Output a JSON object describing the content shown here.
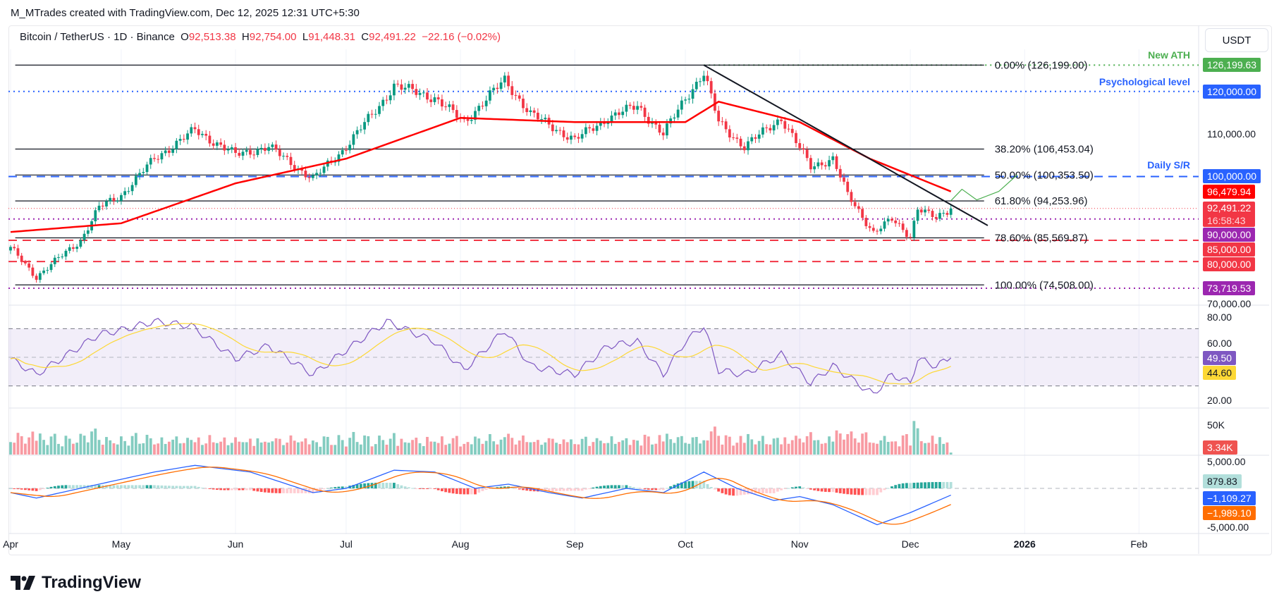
{
  "credit": "M_MTrades created with TradingView.com, Dec 12, 2025 12:31 UTC+5:30",
  "legend": {
    "symbol": "Bitcoin / TetherUS · 1D · Binance",
    "open_label": "O",
    "open": "92,513.38",
    "high_label": "H",
    "high": "92,754.00",
    "low_label": "L",
    "low": "91,448.31",
    "close_label": "C",
    "close": "92,491.22",
    "change": "−22.16 (−0.02%)"
  },
  "currency": "USDT",
  "brand": "TradingView",
  "colors": {
    "up": "#089981",
    "down": "#f23645",
    "ma": "#ff0000",
    "rsi": "#7e57c2",
    "rsi_ma": "#fdd835",
    "macd": "#2962ff",
    "signal": "#ff6d00"
  },
  "chart_data": {
    "type": "candlestick",
    "symbol": "BTCUSDT",
    "interval": "1D",
    "ylim": [
      70000,
      128000
    ],
    "x_ticks": [
      {
        "date": "2025-04-01",
        "label": "Apr"
      },
      {
        "date": "2025-05-01",
        "label": "May"
      },
      {
        "date": "2025-06-01",
        "label": "Jun"
      },
      {
        "date": "2025-07-01",
        "label": "Jul"
      },
      {
        "date": "2025-08-01",
        "label": "Aug"
      },
      {
        "date": "2025-09-01",
        "label": "Sep"
      },
      {
        "date": "2025-10-01",
        "label": "Oct"
      },
      {
        "date": "2025-11-01",
        "label": "Nov"
      },
      {
        "date": "2025-12-01",
        "label": "Dec"
      },
      {
        "date": "2026-01-01",
        "label": "2026"
      },
      {
        "date": "2026-02-01",
        "label": "Feb"
      }
    ],
    "y_ticks": [
      {
        "value": 110000,
        "label": "110,000.00"
      },
      {
        "value": 70000,
        "label": "70,000.00"
      }
    ],
    "close_path": [
      [
        "2025-04-01",
        83100
      ],
      [
        "2025-04-08",
        76400
      ],
      [
        "2025-04-20",
        85000
      ],
      [
        "2025-04-25",
        92700
      ],
      [
        "2025-05-01",
        95600
      ],
      [
        "2025-05-10",
        104200
      ],
      [
        "2025-05-21",
        110900
      ],
      [
        "2025-06-01",
        105100
      ],
      [
        "2025-06-10",
        107000
      ],
      [
        "2025-06-22",
        99400
      ],
      [
        "2025-06-30",
        106100
      ],
      [
        "2025-07-10",
        116600
      ],
      [
        "2025-07-14",
        121400
      ],
      [
        "2025-07-25",
        118500
      ],
      [
        "2025-08-02",
        112800
      ],
      [
        "2025-08-13",
        122700
      ],
      [
        "2025-08-20",
        114700
      ],
      [
        "2025-09-01",
        108600
      ],
      [
        "2025-09-10",
        113800
      ],
      [
        "2025-09-18",
        116600
      ],
      [
        "2025-09-25",
        109900
      ],
      [
        "2025-10-01",
        118500
      ],
      [
        "2025-10-06",
        124300
      ],
      [
        "2025-10-10",
        112800
      ],
      [
        "2025-10-17",
        107000
      ],
      [
        "2025-10-27",
        113800
      ],
      [
        "2025-11-04",
        102300
      ],
      [
        "2025-11-10",
        104200
      ],
      [
        "2025-11-14",
        95600
      ],
      [
        "2025-11-21",
        86900
      ],
      [
        "2025-11-26",
        89800
      ],
      [
        "2025-12-01",
        86000
      ],
      [
        "2025-12-03",
        92700
      ],
      [
        "2025-12-08",
        90000
      ],
      [
        "2025-12-12",
        92491.22
      ]
    ],
    "ma50": [
      [
        "2025-04-01",
        86950
      ],
      [
        "2025-05-01",
        89000
      ],
      [
        "2025-06-01",
        98400
      ],
      [
        "2025-07-01",
        104200
      ],
      [
        "2025-08-01",
        113800
      ],
      [
        "2025-09-01",
        112800
      ],
      [
        "2025-10-01",
        112800
      ],
      [
        "2025-10-10",
        117600
      ],
      [
        "2025-11-01",
        112800
      ],
      [
        "2025-11-20",
        104200
      ],
      [
        "2025-12-12",
        96479.94
      ]
    ],
    "fib_levels": [
      {
        "price": 126199.0,
        "label": "0.00% (126,199.00)"
      },
      {
        "price": 106453.04,
        "label": "38.20% (106,453.04)"
      },
      {
        "price": 100353.5,
        "label": "50.00% (100,353.50)"
      },
      {
        "price": 94253.96,
        "label": "61.80% (94,253.96)"
      },
      {
        "price": 85569.87,
        "label": "78.60% (85,569.87)"
      },
      {
        "price": 74508.0,
        "label": "100.00% (74,508.00)"
      }
    ],
    "fib_range": [
      "2025-04-08",
      "2025-12-21"
    ],
    "levels": [
      {
        "price": 126199.63,
        "label": "126,199.63",
        "color": "#4caf50",
        "style": "dotted",
        "from": "2025-10-06",
        "note": "New ATH"
      },
      {
        "price": 120000,
        "label": "120,000.00",
        "color": "#2962ff",
        "style": "dotted",
        "note": "Psychological level"
      },
      {
        "price": 100000,
        "label": "100,000.00",
        "color": "#2962ff",
        "style": "dashed",
        "note": "Daily S/R"
      },
      {
        "price": 96479.94,
        "label": "96,479.94",
        "color": "#ff0000",
        "style": "none"
      },
      {
        "price": 92491.22,
        "label": "92,491.22",
        "sublabel": "16:58:43",
        "color": "#f23645",
        "style": "dotted-thin"
      },
      {
        "price": 90000,
        "label": "90,000.00",
        "color": "#9c27b0",
        "style": "dotted"
      },
      {
        "price": 85000,
        "label": "85,000.00",
        "color": "#f23645",
        "style": "dashed"
      },
      {
        "price": 80000,
        "label": "80,000.00",
        "color": "#f23645",
        "style": "dashed"
      },
      {
        "price": 73719.53,
        "label": "73,719.53",
        "color": "#9c27b0",
        "style": "dotted"
      }
    ],
    "trendline": [
      [
        "2025-10-06",
        126199
      ],
      [
        "2025-12-22",
        88480
      ]
    ],
    "projection": [
      [
        "2025-12-12",
        94300
      ],
      [
        "2025-12-15",
        97000
      ],
      [
        "2025-12-19",
        94500
      ],
      [
        "2025-12-25",
        96500
      ],
      [
        "2025-12-30",
        100400
      ]
    ],
    "rsi": {
      "ylim": [
        15,
        85
      ],
      "bands": [
        70,
        30
      ],
      "mid": 50,
      "ticks": [
        {
          "value": 80,
          "label": "80.00"
        },
        {
          "value": 60,
          "label": "60.00"
        },
        {
          "value": 20,
          "label": "20.00"
        }
      ],
      "last": "49.50",
      "ma_last": "44.60",
      "path": [
        [
          "2025-04-01",
          49
        ],
        [
          "2025-04-08",
          38
        ],
        [
          "2025-04-25",
          66
        ],
        [
          "2025-05-01",
          69
        ],
        [
          "2025-05-10",
          75
        ],
        [
          "2025-05-20",
          72
        ],
        [
          "2025-06-01",
          49
        ],
        [
          "2025-06-10",
          58
        ],
        [
          "2025-06-22",
          38
        ],
        [
          "2025-07-01",
          55
        ],
        [
          "2025-07-12",
          75
        ],
        [
          "2025-07-25",
          61
        ],
        [
          "2025-08-02",
          41
        ],
        [
          "2025-08-13",
          69
        ],
        [
          "2025-08-20",
          44
        ],
        [
          "2025-09-01",
          38
        ],
        [
          "2025-09-10",
          58
        ],
        [
          "2025-09-18",
          61
        ],
        [
          "2025-09-25",
          38
        ],
        [
          "2025-10-01",
          61
        ],
        [
          "2025-10-06",
          72
        ],
        [
          "2025-10-10",
          41
        ],
        [
          "2025-10-17",
          38
        ],
        [
          "2025-10-27",
          52
        ],
        [
          "2025-11-04",
          32
        ],
        [
          "2025-11-10",
          44
        ],
        [
          "2025-11-21",
          24
        ],
        [
          "2025-11-26",
          38
        ],
        [
          "2025-12-01",
          32
        ],
        [
          "2025-12-03",
          49
        ],
        [
          "2025-12-08",
          44
        ],
        [
          "2025-12-12",
          49.5
        ]
      ]
    },
    "volume": {
      "ticks": [
        {
          "value": 50000,
          "label": "50K"
        }
      ],
      "last": "3.34K"
    },
    "macd": {
      "ticks": [
        {
          "value": 5000,
          "label": "5,000.00"
        },
        {
          "value": -5000,
          "label": "-5,000.00"
        }
      ],
      "hist_last": "879.83",
      "macd_last": "−1,109.27",
      "signal_last": "−1,989.10",
      "path": [
        [
          "2025-04-01",
          -700
        ],
        [
          "2025-04-08",
          -1600
        ],
        [
          "2025-04-25",
          700
        ],
        [
          "2025-05-10",
          2700
        ],
        [
          "2025-05-21",
          3800
        ],
        [
          "2025-06-05",
          2700
        ],
        [
          "2025-06-22",
          -700
        ],
        [
          "2025-07-01",
          0
        ],
        [
          "2025-07-14",
          3000
        ],
        [
          "2025-07-25",
          2700
        ],
        [
          "2025-08-05",
          0
        ],
        [
          "2025-08-14",
          700
        ],
        [
          "2025-08-25",
          -700
        ],
        [
          "2025-09-03",
          -1600
        ],
        [
          "2025-09-15",
          0
        ],
        [
          "2025-09-25",
          -700
        ],
        [
          "2025-10-06",
          2700
        ],
        [
          "2025-10-15",
          0
        ],
        [
          "2025-10-25",
          -2000
        ],
        [
          "2025-11-01",
          -1350
        ],
        [
          "2025-11-10",
          -2700
        ],
        [
          "2025-11-22",
          -6000
        ],
        [
          "2025-12-01",
          -4000
        ],
        [
          "2025-12-12",
          -1109.27
        ]
      ]
    }
  }
}
